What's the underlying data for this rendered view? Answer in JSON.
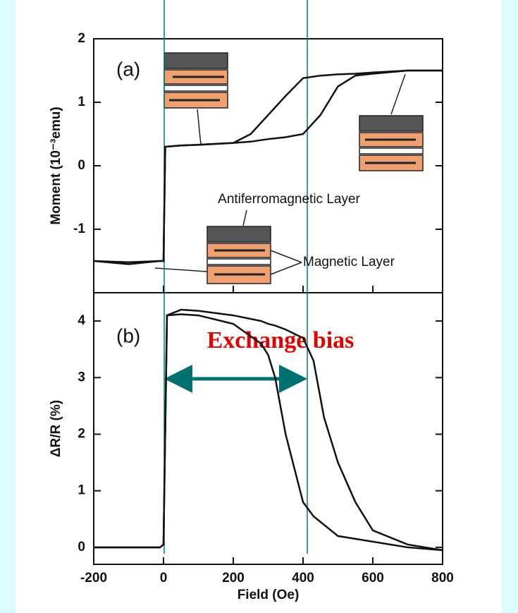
{
  "chart_data": [
    {
      "type": "line",
      "panel_label": "(a)",
      "ylabel": "Moment (10⁻³emu)",
      "annotations": [
        "Antiferromagnetic Layer",
        "Magnetic Layer"
      ],
      "xlim": [
        -200,
        800
      ],
      "ylim": [
        -2,
        2
      ],
      "yticks": [
        2,
        1,
        0,
        -1
      ],
      "x": [
        -200,
        -100,
        -10,
        0,
        5,
        50,
        100,
        200,
        250,
        300,
        350,
        400,
        450,
        500,
        550,
        600,
        700,
        800
      ],
      "series": [
        {
          "color": "#111111",
          "values": [
            -1.5,
            -1.52,
            -1.5,
            -1.5,
            0.3,
            0.32,
            0.33,
            0.36,
            0.38,
            0.42,
            0.45,
            0.5,
            0.8,
            1.25,
            1.42,
            1.45,
            1.5,
            1.5
          ]
        },
        {
          "color": "#111111",
          "values": [
            -1.5,
            -1.55,
            -1.5,
            -1.5,
            0.3,
            0.32,
            0.33,
            0.36,
            0.5,
            0.8,
            1.1,
            1.38,
            1.42,
            1.44,
            1.45,
            1.47,
            1.5,
            1.5
          ]
        }
      ]
    },
    {
      "type": "line",
      "panel_label": "(b)",
      "ylabel": "ΔR/R (%)",
      "xlabel": "Field (Oe)",
      "annotations": [
        "Exchange bias"
      ],
      "xlim": [
        -200,
        800
      ],
      "xticks": [
        -200,
        0,
        200,
        400,
        600,
        800
      ],
      "ylim": [
        -0.3,
        4.5
      ],
      "yticks": [
        4,
        3,
        2,
        1,
        0
      ],
      "x": [
        -200,
        -100,
        -10,
        0,
        10,
        50,
        100,
        200,
        280,
        300,
        320,
        350,
        400,
        430,
        460,
        500,
        550,
        600,
        700,
        800
      ],
      "series": [
        {
          "color": "#111111",
          "values": [
            0,
            0,
            0,
            0.05,
            4.1,
            4.2,
            4.18,
            4.1,
            4.0,
            3.95,
            3.92,
            3.85,
            3.7,
            3.3,
            2.3,
            1.5,
            0.8,
            0.3,
            0.05,
            -0.05
          ]
        },
        {
          "color": "#111111",
          "values": [
            0,
            0,
            0,
            0.05,
            4.1,
            4.12,
            4.1,
            3.95,
            3.6,
            3.4,
            3.0,
            2.0,
            0.8,
            0.55,
            0.4,
            0.2,
            0.15,
            0.1,
            0,
            -0.05
          ]
        }
      ]
    }
  ]
}
